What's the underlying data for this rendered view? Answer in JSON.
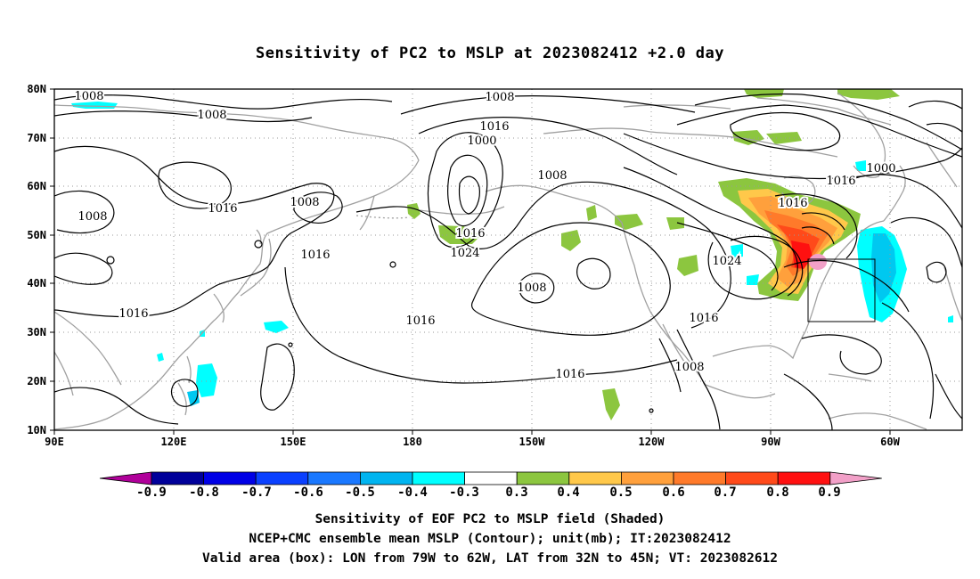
{
  "title": "Sensitivity of PC2 to MSLP at 2023082412 +2.0 day",
  "map": {
    "lon_labels": [
      "90E",
      "120E",
      "150E",
      "180",
      "150W",
      "120W",
      "90W",
      "60W"
    ],
    "lat_labels": [
      "80N",
      "70N",
      "60N",
      "50N",
      "40N",
      "30N",
      "20N",
      "10N"
    ],
    "contour_labels": [
      "1008",
      "1008",
      "1008",
      "1016",
      "1008",
      "1016",
      "1016",
      "1008",
      "1016",
      "1000",
      "1008",
      "1016",
      "1024",
      "1016",
      "1008",
      "1016",
      "1008",
      "1016",
      "1024",
      "1016",
      "1000",
      "1016"
    ],
    "valid_box": {
      "lon_west": -79,
      "lon_east": -62,
      "lat_south": 32,
      "lat_north": 45
    },
    "colors": {
      "land_outline": "#a0a0a0",
      "contour": "#000000",
      "pos_03_04": "#8cc63f",
      "pos_04_05": "#ffc84a",
      "pos_05_06": "#ffa03c",
      "pos_06_07": "#ff7a2a",
      "pos_07_08": "#ff4a1a",
      "pos_08_09": "#ff1010",
      "pos_gt_09": "#f2a0c8",
      "neg_03_04": "#00ffff",
      "neg_04_05": "#00c8f0"
    }
  },
  "colorbar": {
    "labels": [
      "-0.9",
      "-0.8",
      "-0.7",
      "-0.6",
      "-0.5",
      "-0.4",
      "-0.3",
      "0.3",
      "0.4",
      "0.5",
      "0.6",
      "0.7",
      "0.8",
      "0.9"
    ],
    "colors": [
      "#b0009a",
      "#00009a",
      "#0000e6",
      "#0a40ff",
      "#1a78ff",
      "#00b4f0",
      "#00ffff",
      "#ffffff",
      "#8cc63f",
      "#ffc84a",
      "#ffa03c",
      "#ff7a2a",
      "#ff4a1a",
      "#ff1010",
      "#f2a0c8"
    ]
  },
  "caption": {
    "line1": "Sensitivity of EOF PC2 to MSLP field (Shaded)",
    "line2": "NCEP+CMC ensemble mean MSLP (Contour); unit(mb); IT:2023082412",
    "line3": "Valid area (box): LON from 79W to 62W, LAT from 32N to 45N; VT: 2023082612"
  }
}
